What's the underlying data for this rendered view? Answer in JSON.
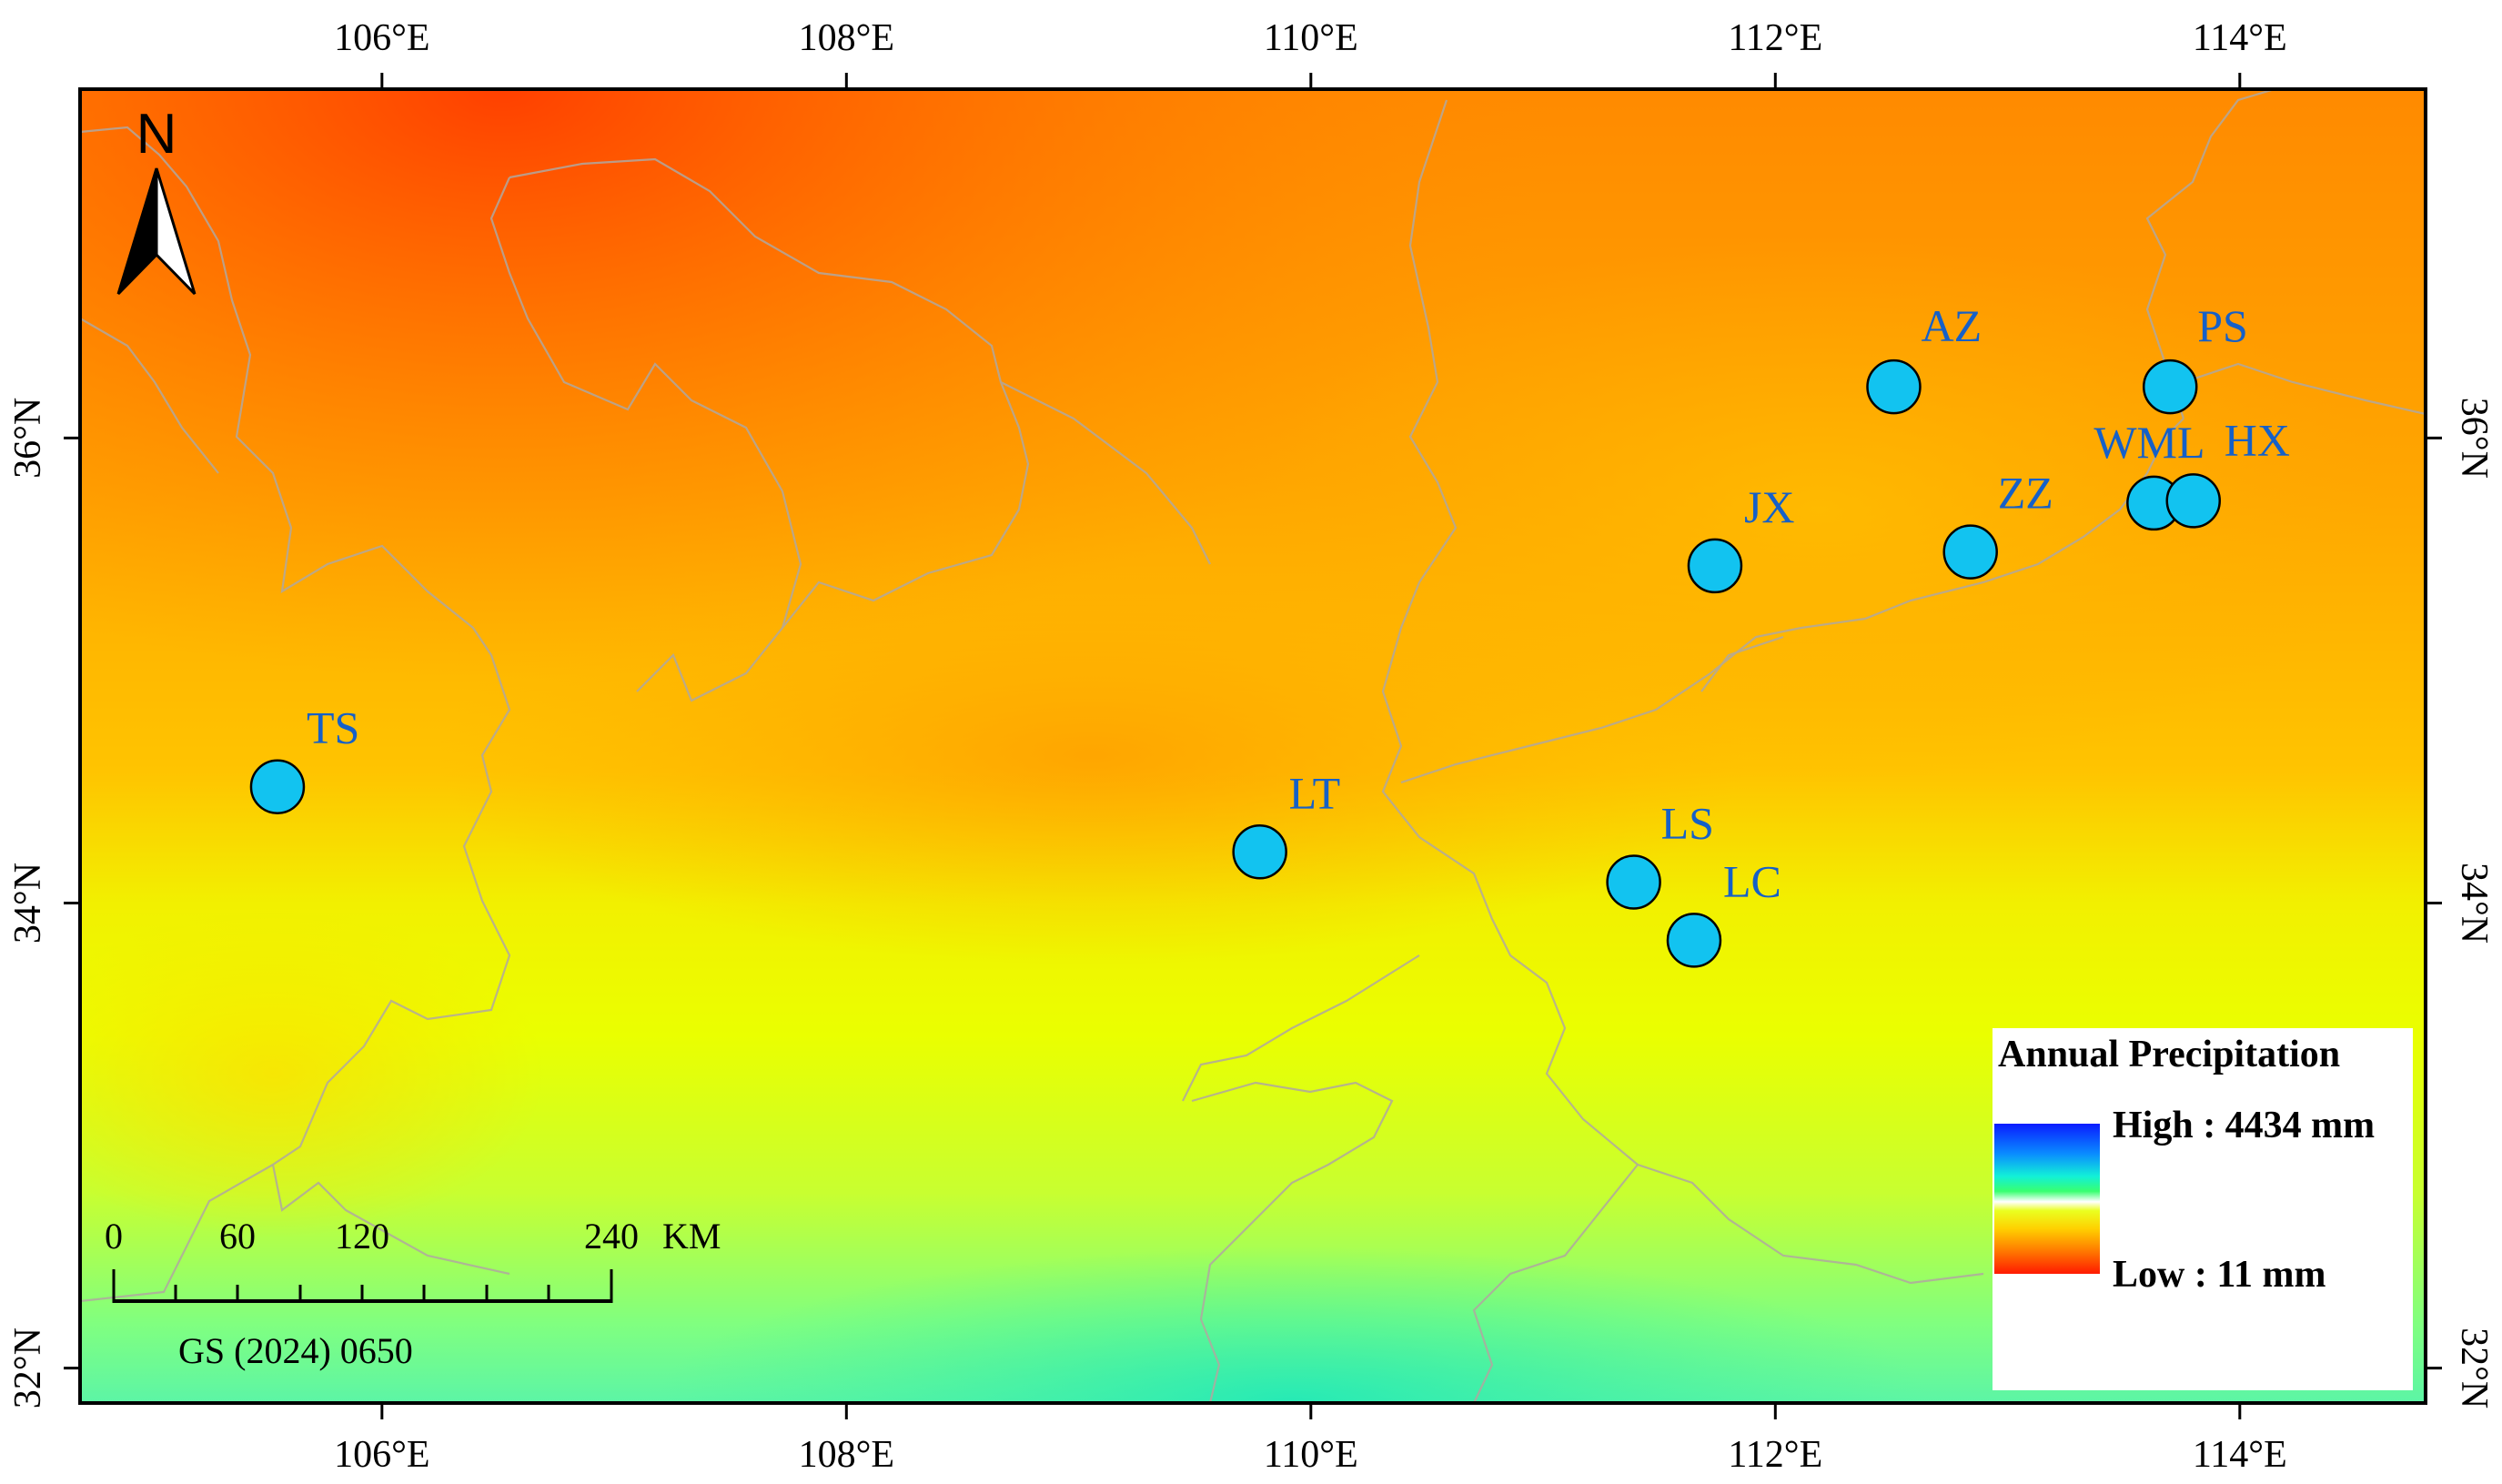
{
  "map": {
    "lon_range": [
      104.7,
      114.8
    ],
    "lat_range": [
      31.85,
      37.5
    ],
    "lon_ticks": [
      {
        "value": 106,
        "label": "106°E"
      },
      {
        "value": 108,
        "label": "108°E"
      },
      {
        "value": 110,
        "label": "110°E"
      },
      {
        "value": 112,
        "label": "112°E"
      },
      {
        "value": 114,
        "label": "114°E"
      }
    ],
    "lat_ticks": [
      {
        "value": 32,
        "label": "32°N"
      },
      {
        "value": 34,
        "label": "34°N"
      },
      {
        "value": 36,
        "label": "36°N"
      }
    ],
    "sites": [
      {
        "name": "TS",
        "lon": 105.55,
        "lat": 34.5
      },
      {
        "name": "LT",
        "lon": 109.78,
        "lat": 34.22
      },
      {
        "name": "LS",
        "lon": 111.39,
        "lat": 34.09
      },
      {
        "name": "LC",
        "lon": 111.65,
        "lat": 33.84
      },
      {
        "name": "JX",
        "lon": 111.74,
        "lat": 35.45
      },
      {
        "name": "AZ",
        "lon": 112.51,
        "lat": 36.22
      },
      {
        "name": "ZZ",
        "lon": 112.84,
        "lat": 35.51
      },
      {
        "name": "PS",
        "lon": 113.7,
        "lat": 36.22
      },
      {
        "name": "WML",
        "lon": 113.63,
        "lat": 35.72
      },
      {
        "name": "HX",
        "lon": 113.8,
        "lat": 35.73
      }
    ],
    "marker_color": "#12c3f0"
  },
  "north_arrow": {
    "label": "N"
  },
  "scale_bar": {
    "ticks": [
      "0",
      "60",
      "120",
      "240"
    ],
    "unit": "KM",
    "reference": "GS (2024) 0650"
  },
  "legend": {
    "title": "Annual Precipitation",
    "high": "High : 4434 mm",
    "low": "Low : 11 mm",
    "high_color": "#0a1cff",
    "low_color": "#ff1a00"
  },
  "colors": {
    "dry": "#ff4a00",
    "mid": "#ffc800",
    "wet": "#f2ff00",
    "very_wet": "#38f0a0"
  }
}
